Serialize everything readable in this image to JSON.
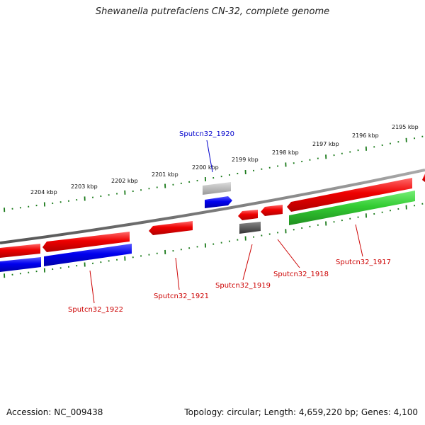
{
  "title": "Shewanella putrefaciens CN-32, complete genome",
  "footer": {
    "accession": "Accession: NC_009438",
    "summary": "Topology: circular; Length: 4,659,220 bp; Genes: 4,100"
  },
  "colors": {
    "backbone": "#777777",
    "tick": "#1a7a1a",
    "forward_gene": "#e00000",
    "reverse_gene": "#0000dd",
    "rna_gene": "#33cc33",
    "pseudo_gene": "#aaaaaa",
    "dark_gene": "#555555",
    "label_red": "#cc0000",
    "label_blue": "#0000cc"
  },
  "kbp_labels": [
    "2204 kbp",
    "2203 kbp",
    "2202 kbp",
    "2201 kbp",
    "2200 kbp",
    "2199 kbp",
    "2198 kbp",
    "2197 kbp",
    "2196 kbp",
    "2195 kbp"
  ],
  "gene_labels": [
    {
      "name": "Sputcn32_1920",
      "color": "blue"
    },
    {
      "name": "Sputcn32_1922",
      "color": "red"
    },
    {
      "name": "Sputcn32_1921",
      "color": "red"
    },
    {
      "name": "Sputcn32_1919",
      "color": "red"
    },
    {
      "name": "Sputcn32_1918",
      "color": "red"
    },
    {
      "name": "Sputcn32_1917",
      "color": "red"
    }
  ]
}
